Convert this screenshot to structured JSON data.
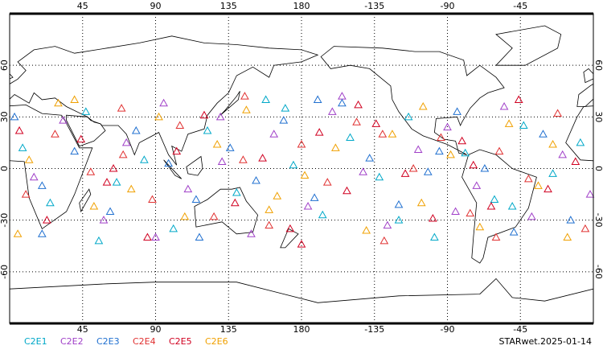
{
  "chart_data": {
    "type": "scatter",
    "xlim": [
      0,
      360
    ],
    "ylim": [
      -90,
      90
    ],
    "xticks": [
      45,
      90,
      135,
      180,
      {
        "value": 225,
        "label": "-135"
      },
      {
        "value": 270,
        "label": "-90"
      },
      {
        "value": 315,
        "label": "-45"
      }
    ],
    "yticks": [
      60,
      30,
      0,
      -30,
      -60
    ],
    "grid": true,
    "annotation": "STARwet.2025-01-14",
    "series": [
      {
        "name": "C2E1",
        "color": "#00a8c8",
        "x": [
          8,
          25,
          47,
          66,
          83,
          101,
          122,
          140,
          158,
          175,
          193,
          210,
          228,
          246,
          262,
          281,
          299,
          317,
          335,
          352,
          55,
          170,
          240,
          310
        ],
        "y": [
          12,
          -20,
          33,
          -8,
          5,
          -35,
          22,
          -14,
          40,
          2,
          -27,
          18,
          -5,
          30,
          -40,
          9,
          -18,
          25,
          -3,
          15,
          -42,
          35,
          -30,
          -22
        ]
      },
      {
        "name": "C2E2",
        "color": "#a040c8",
        "x": [
          15,
          33,
          58,
          72,
          95,
          110,
          131,
          149,
          163,
          184,
          199,
          218,
          233,
          252,
          270,
          288,
          305,
          322,
          341,
          358,
          90,
          205,
          275,
          130
        ],
        "y": [
          -5,
          28,
          -30,
          15,
          38,
          -12,
          4,
          -38,
          20,
          -22,
          33,
          -2,
          -33,
          11,
          24,
          -10,
          36,
          -28,
          8,
          -15,
          -40,
          42,
          -25,
          30
        ]
      },
      {
        "name": "C2E3",
        "color": "#2070d0",
        "x": [
          3,
          20,
          40,
          62,
          78,
          98,
          117,
          136,
          152,
          169,
          188,
          205,
          222,
          240,
          258,
          276,
          293,
          311,
          329,
          346,
          115,
          265,
          20,
          190
        ],
        "y": [
          30,
          -10,
          10,
          -25,
          22,
          3,
          -40,
          12,
          -7,
          28,
          -17,
          38,
          6,
          -21,
          -2,
          33,
          0,
          -37,
          20,
          -30,
          -18,
          10,
          -38,
          40
        ]
      },
      {
        "name": "C2E4",
        "color": "#e03030",
        "x": [
          10,
          28,
          50,
          69,
          88,
          105,
          126,
          144,
          160,
          180,
          196,
          214,
          231,
          249,
          266,
          284,
          302,
          320,
          338,
          355,
          145,
          300,
          70,
          230
        ],
        "y": [
          -15,
          20,
          -2,
          35,
          -18,
          25,
          -28,
          5,
          -33,
          14,
          -8,
          27,
          -42,
          0,
          18,
          -26,
          10,
          -6,
          32,
          -35,
          42,
          -40,
          8,
          20
        ]
      },
      {
        "name": "C2E5",
        "color": "#d00020",
        "x": [
          6,
          23,
          44,
          64,
          85,
          103,
          120,
          139,
          156,
          173,
          191,
          208,
          226,
          244,
          261,
          279,
          297,
          314,
          332,
          349,
          60,
          180,
          286,
          215
        ],
        "y": [
          22,
          -30,
          17,
          0,
          -40,
          10,
          31,
          -20,
          6,
          -35,
          21,
          -13,
          26,
          -3,
          -29,
          16,
          -22,
          40,
          -12,
          4,
          -8,
          -44,
          2,
          37
        ]
      },
      {
        "name": "C2E6",
        "color": "#f0a000",
        "x": [
          12,
          30,
          52,
          75,
          92,
          108,
          128,
          146,
          165,
          182,
          201,
          220,
          236,
          254,
          272,
          290,
          308,
          326,
          344,
          5,
          40,
          160,
          255,
          335
        ],
        "y": [
          5,
          38,
          -22,
          -12,
          30,
          -28,
          14,
          34,
          -16,
          -4,
          12,
          -36,
          20,
          -20,
          8,
          -34,
          26,
          -10,
          -40,
          -38,
          40,
          -24,
          36,
          14
        ]
      }
    ]
  }
}
